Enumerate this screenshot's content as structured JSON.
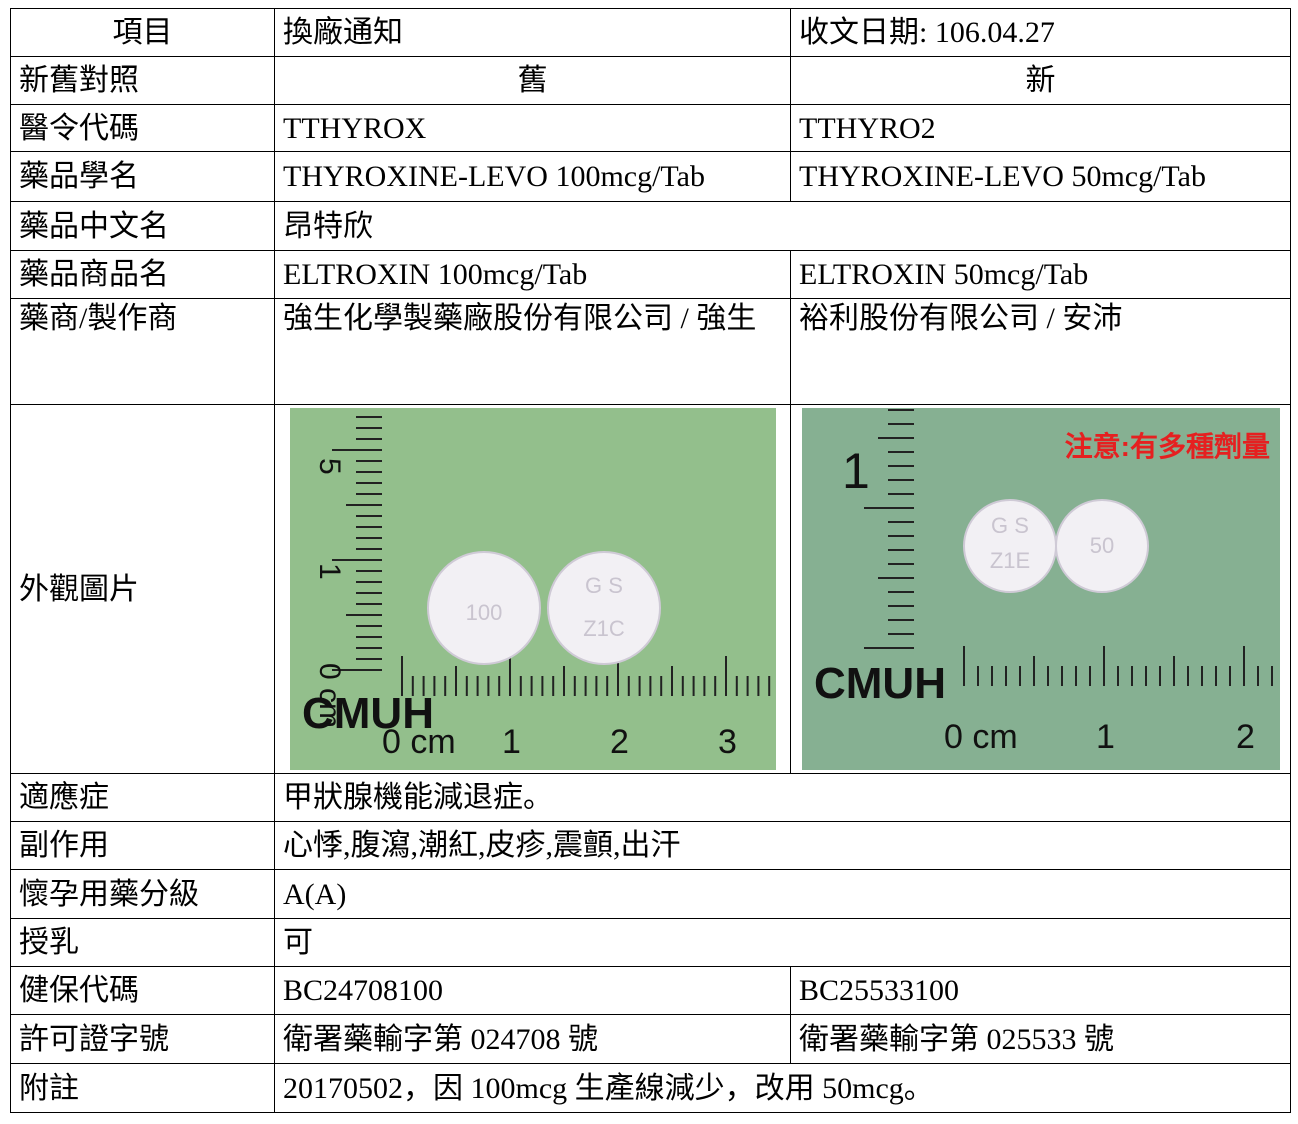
{
  "table": {
    "rows": [
      [
        "項目",
        "換廠通知",
        "收文日期: 106.04.27"
      ],
      [
        "新舊對照",
        "舊",
        "新"
      ],
      [
        "醫令代碼",
        "TTHYROX",
        "TTHYRO2"
      ],
      [
        "藥品學名",
        "THYROXINE-LEVO 100mcg/Tab",
        "THYROXINE-LEVO 50mcg/Tab"
      ],
      [
        "藥品中文名",
        "昂特欣"
      ],
      [
        "藥品商品名",
        "ELTROXIN 100mcg/Tab",
        "ELTROXIN 50mcg/Tab"
      ],
      [
        "藥商/製作商",
        "強生化學製藥廠股份有限公司 / 強生",
        "裕利股份有限公司 / 安沛"
      ],
      [
        "外觀圖片"
      ],
      [
        "適應症",
        "甲狀腺機能減退症。"
      ],
      [
        "副作用",
        "心悸,腹瀉,潮紅,皮疹,震顫,出汗"
      ],
      [
        "懷孕用藥分級",
        "A(A)"
      ],
      [
        "授乳",
        "可"
      ],
      [
        "健保代碼",
        "BC24708100",
        "BC25533100"
      ],
      [
        "許可證字號",
        "衛署藥輸字第 024708 號",
        "衛署藥輸字第 025533 號"
      ],
      [
        "附註",
        "20170502，因 100mcg 生產線減少，改用 50mcg。"
      ]
    ]
  },
  "photos": [
    {
      "brand": "CMUH",
      "scale": [
        "0 cm",
        "1",
        "2",
        "3"
      ],
      "vertical_scale": [
        "5",
        "1",
        "0 cm"
      ],
      "imprints": [
        "100",
        "G S",
        "Z1C"
      ]
    },
    {
      "brand": "CMUH",
      "scale": [
        "0 cm",
        "1",
        "2"
      ],
      "vertical_scale": [
        "1"
      ],
      "imprints": [
        "G S",
        "Z1E",
        "50"
      ],
      "warning": "注意:有多種劑量"
    }
  ]
}
